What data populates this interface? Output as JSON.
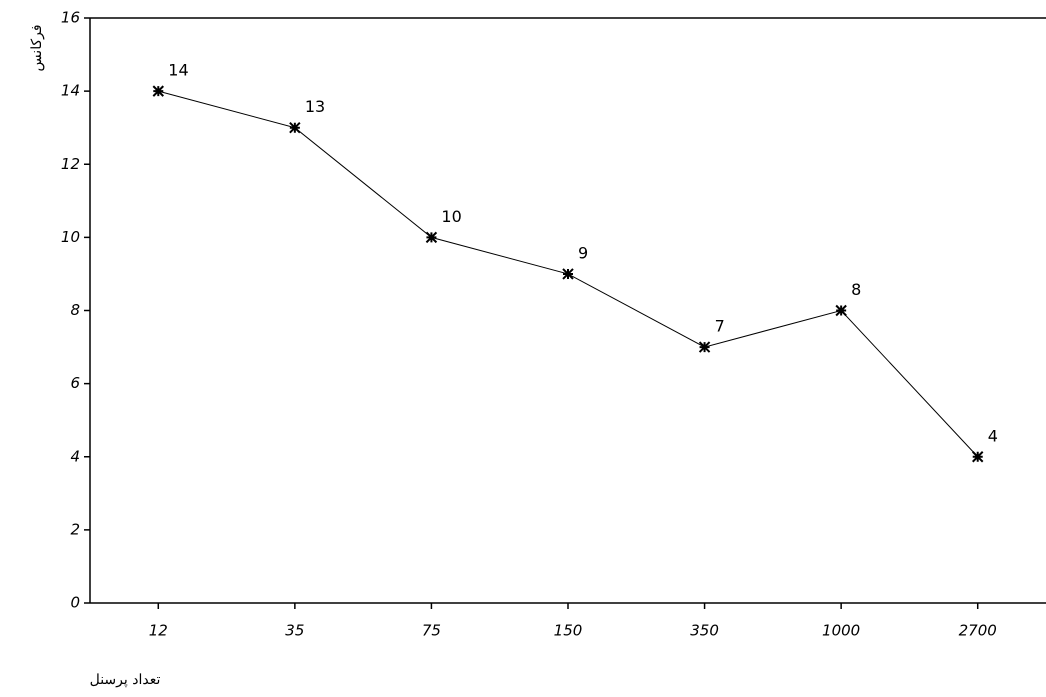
{
  "chart_data": {
    "type": "line",
    "y_label": "فرکانس",
    "x_label": "تعداد پرسنل",
    "categories": [
      "12",
      "35",
      "75",
      "150",
      "350",
      "1000",
      "2700"
    ],
    "values": [
      14,
      13,
      10,
      9,
      7,
      8,
      4
    ],
    "color": "#000000",
    "ylim": [
      0,
      16
    ],
    "yticks": [
      0,
      2,
      4,
      6,
      8,
      10,
      12,
      14,
      16
    ],
    "grid": false
  }
}
